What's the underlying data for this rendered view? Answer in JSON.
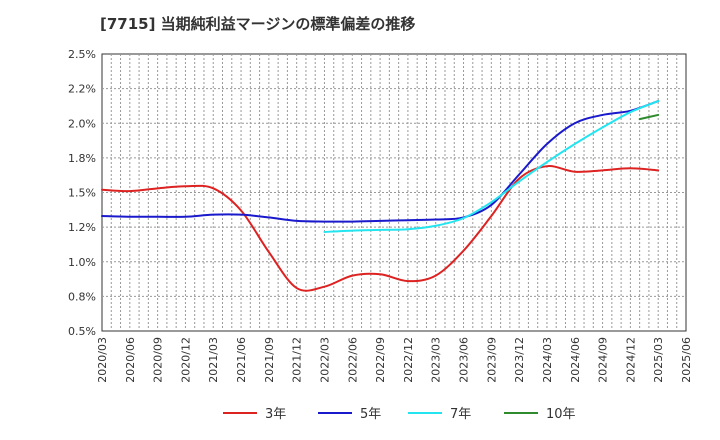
{
  "chart_data": {
    "type": "line",
    "title": "[7715]  当期純利益マージンの標準偏差の推移",
    "xlabel": "",
    "ylabel": "",
    "ylim": [
      0.5,
      2.5
    ],
    "grid": true,
    "legend_position": "bottom",
    "x_ticks": [
      "2020/03",
      "2020/06",
      "2020/09",
      "2020/12",
      "2021/03",
      "2021/06",
      "2021/09",
      "2021/12",
      "2022/03",
      "2022/06",
      "2022/09",
      "2022/12",
      "2023/03",
      "2023/06",
      "2023/09",
      "2023/12",
      "2024/03",
      "2024/06",
      "2024/09",
      "2024/12",
      "2025/03",
      "2025/06"
    ],
    "y_ticks": [
      {
        "value": 0.5,
        "label": "0.5%"
      },
      {
        "value": 0.75,
        "label": "0.8%"
      },
      {
        "value": 1.0,
        "label": "1.0%"
      },
      {
        "value": 1.25,
        "label": "1.2%"
      },
      {
        "value": 1.5,
        "label": "1.5%"
      },
      {
        "value": 1.75,
        "label": "1.8%"
      },
      {
        "value": 2.0,
        "label": "2.0%"
      },
      {
        "value": 2.25,
        "label": "2.2%"
      },
      {
        "value": 2.5,
        "label": "2.5%"
      }
    ],
    "series": [
      {
        "name": "3年",
        "color": "#dd2222",
        "points": [
          [
            "2020/03",
            1.52
          ],
          [
            "2020/06",
            1.51
          ],
          [
            "2020/09",
            1.53
          ],
          [
            "2020/12",
            1.545
          ],
          [
            "2021/03",
            1.53
          ],
          [
            "2021/06",
            1.37
          ],
          [
            "2021/09",
            1.07
          ],
          [
            "2021/12",
            0.81
          ],
          [
            "2022/03",
            0.82
          ],
          [
            "2022/06",
            0.9
          ],
          [
            "2022/09",
            0.91
          ],
          [
            "2022/12",
            0.86
          ],
          [
            "2023/03",
            0.9
          ],
          [
            "2023/06",
            1.08
          ],
          [
            "2023/09",
            1.33
          ],
          [
            "2023/12",
            1.6
          ],
          [
            "2024/03",
            1.69
          ],
          [
            "2024/06",
            1.65
          ],
          [
            "2024/09",
            1.66
          ],
          [
            "2024/12",
            1.675
          ],
          [
            "2025/03",
            1.66
          ]
        ]
      },
      {
        "name": "5年",
        "color": "#1a1acc",
        "points": [
          [
            "2020/03",
            1.33
          ],
          [
            "2020/06",
            1.325
          ],
          [
            "2020/09",
            1.325
          ],
          [
            "2020/12",
            1.325
          ],
          [
            "2021/03",
            1.34
          ],
          [
            "2021/06",
            1.34
          ],
          [
            "2021/09",
            1.32
          ],
          [
            "2021/12",
            1.295
          ],
          [
            "2022/03",
            1.29
          ],
          [
            "2022/06",
            1.29
          ],
          [
            "2022/09",
            1.295
          ],
          [
            "2022/12",
            1.3
          ],
          [
            "2023/03",
            1.305
          ],
          [
            "2023/06",
            1.32
          ],
          [
            "2023/09",
            1.41
          ],
          [
            "2023/12",
            1.63
          ],
          [
            "2024/03",
            1.85
          ],
          [
            "2024/06",
            2.0
          ],
          [
            "2024/09",
            2.06
          ],
          [
            "2024/12",
            2.09
          ],
          [
            "2025/03",
            2.16
          ]
        ]
      },
      {
        "name": "7年",
        "color": "#22e5f0",
        "points": [
          [
            "2022/03",
            1.215
          ],
          [
            "2022/06",
            1.225
          ],
          [
            "2022/09",
            1.23
          ],
          [
            "2022/12",
            1.235
          ],
          [
            "2023/03",
            1.26
          ],
          [
            "2023/06",
            1.315
          ],
          [
            "2023/09",
            1.43
          ],
          [
            "2023/12",
            1.58
          ],
          [
            "2024/03",
            1.72
          ],
          [
            "2024/06",
            1.85
          ],
          [
            "2024/09",
            1.97
          ],
          [
            "2024/12",
            2.08
          ],
          [
            "2025/03",
            2.16
          ]
        ]
      },
      {
        "name": "10年",
        "color": "#2e8b2e",
        "points": [
          [
            "2025/01",
            2.03
          ],
          [
            "2025/03",
            2.06
          ]
        ]
      }
    ]
  }
}
